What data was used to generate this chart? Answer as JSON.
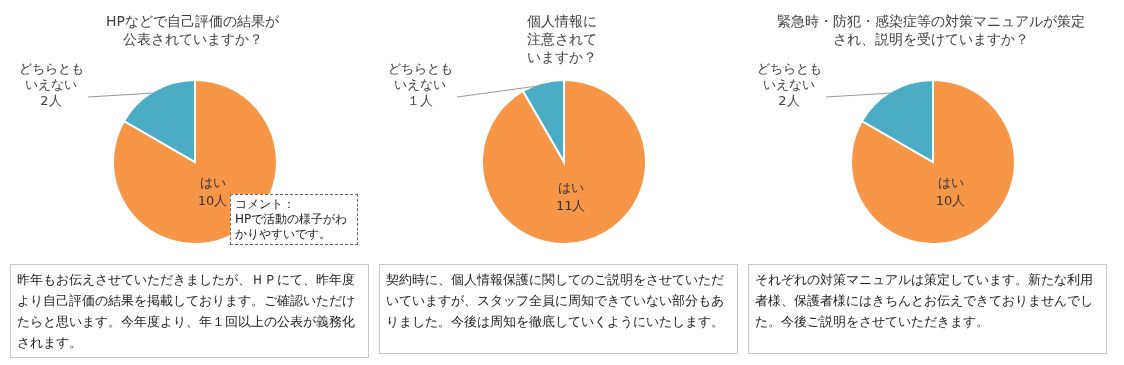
{
  "chart_data": [
    {
      "type": "pie",
      "title": "HPなどで自己評価の結果が公表されていますか？",
      "categories": [
        "はい",
        "どちらともいえない"
      ],
      "values": [
        10,
        2
      ],
      "value_labels": [
        "10人",
        "2人"
      ],
      "colors": [
        "#f79646",
        "#4bacc6"
      ],
      "annotations": [
        "コメント：",
        "HPで活動の様子がわかりやすいです。",
        "昨年もお伝えさせていただきましたが、ＨＰにて、昨年度より自己評価の結果を掲載しております。ご確認いただけたらと思います。今年度より、年１回以上の公表が義務化されます。"
      ]
    },
    {
      "type": "pie",
      "title": "個人情報に注意されていますか？",
      "categories": [
        "はい",
        "どちらともいえない"
      ],
      "values": [
        11,
        1
      ],
      "value_labels": [
        "11人",
        "１人"
      ],
      "colors": [
        "#f79646",
        "#4bacc6"
      ],
      "annotations": [
        "契約時に、個人情報保護に関してのご説明をさせていただいていますが、スタッフ全員に周知できていない部分もありました。今後は周知を徹底していくようにいたします。"
      ]
    },
    {
      "type": "pie",
      "title": "緊急時・防犯・感染症等の対策マニュアルが策定され、説明を受けていますか？",
      "categories": [
        "はい",
        "どちらともいえない"
      ],
      "values": [
        10,
        2
      ],
      "value_labels": [
        "10人",
        "2人"
      ],
      "colors": [
        "#f79646",
        "#4bacc6"
      ],
      "annotations": [
        "それぞれの対策マニュアルは策定しています。新たな利用者様、保護者様にはきちんとお伝えできておりませんでした。今後ご説明をさせていただきます。"
      ]
    }
  ]
}
